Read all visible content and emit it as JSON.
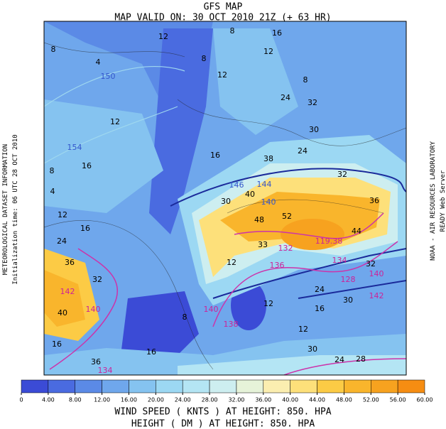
{
  "header": {
    "title": "GFS MAP",
    "subtitle": "MAP VALID ON: 30 OCT 2010 21Z (+ 63 HR)"
  },
  "left_info": [
    "METEOROLOGICAL DATASET INFORMATION",
    "Initialization time: 06 UTC 28 OCT 2010"
  ],
  "right_info": [
    "NOAA - AIR RESOURCES LABORATORY",
    "READY Web Server"
  ],
  "map": {
    "contour_labels": [
      8,
      4,
      150,
      12,
      154,
      16,
      8,
      4,
      12,
      16,
      24,
      36,
      32,
      142,
      40,
      140,
      16,
      36,
      134,
      16,
      8,
      140,
      138,
      12,
      16,
      12,
      24,
      30,
      140,
      142,
      32,
      44,
      36,
      32,
      24,
      30,
      32,
      24,
      8,
      12,
      16,
      8,
      12,
      38,
      40,
      146,
      144,
      140,
      48,
      52,
      119.38,
      33,
      132,
      136,
      134,
      128,
      30,
      12,
      28,
      24,
      30,
      16,
      8,
      12
    ]
  },
  "colorbar": {
    "colors": [
      "#3b4bd6",
      "#4a6be0",
      "#5b8ae6",
      "#6fa7ec",
      "#85c3f0",
      "#9cd8f3",
      "#b4e5f4",
      "#cdeef0",
      "#e6f3d9",
      "#fbeeb0",
      "#fde07a",
      "#fccb45",
      "#f9b52c",
      "#f7a21f",
      "#f68d12"
    ],
    "ticks": [
      0,
      {
        "value": 4,
        "label": "4.00"
      },
      {
        "value": 8,
        "label": "8.00"
      },
      {
        "value": 12,
        "label": "12.00"
      },
      {
        "value": 16,
        "label": "16.00"
      },
      {
        "value": 20,
        "label": "20.00"
      },
      {
        "value": 24,
        "label": "24.00"
      },
      {
        "value": 28,
        "label": "28.00"
      },
      {
        "value": 32,
        "label": "32.00"
      },
      {
        "value": 36,
        "label": "36.00"
      },
      {
        "value": 40,
        "label": "40.00"
      },
      {
        "value": 44,
        "label": "44.00"
      },
      {
        "value": 48,
        "label": "48.00"
      },
      {
        "value": 52,
        "label": "52.00"
      },
      {
        "value": 56,
        "label": "56.00"
      },
      {
        "value": 60,
        "label": "60.00"
      }
    ]
  },
  "footer": [
    "WIND SPEED ( KNTS ) AT HEIGHT: 850. HPA",
    "HEIGHT ( DM ) AT HEIGHT: 850. HPA"
  ]
}
